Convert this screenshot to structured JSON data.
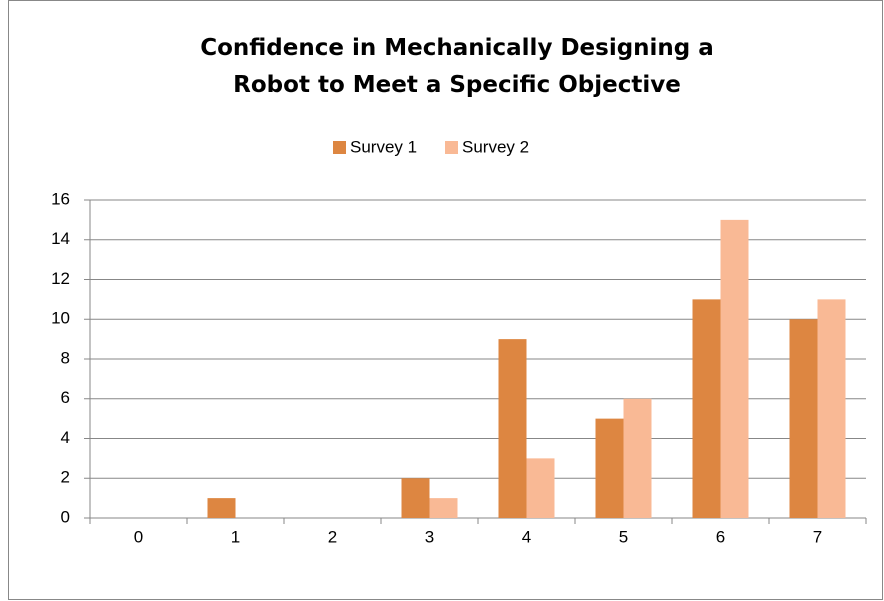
{
  "chart_data": {
    "type": "bar",
    "title": "Confidence in Mechanically Designing a Robot to Meet a Specific Objective",
    "categories": [
      "0",
      "1",
      "2",
      "3",
      "4",
      "5",
      "6",
      "7"
    ],
    "series": [
      {
        "name": "Survey 1",
        "color": "#dd8641",
        "values": [
          0,
          1,
          0,
          2,
          9,
          5,
          11,
          10
        ]
      },
      {
        "name": "Survey 2",
        "color": "#f9b995",
        "values": [
          0,
          0,
          0,
          1,
          3,
          6,
          15,
          11
        ]
      }
    ],
    "ylim": [
      0,
      16
    ],
    "yticks": [
      0,
      2,
      4,
      6,
      8,
      10,
      12,
      14,
      16
    ],
    "grid": true,
    "legend": "top"
  }
}
